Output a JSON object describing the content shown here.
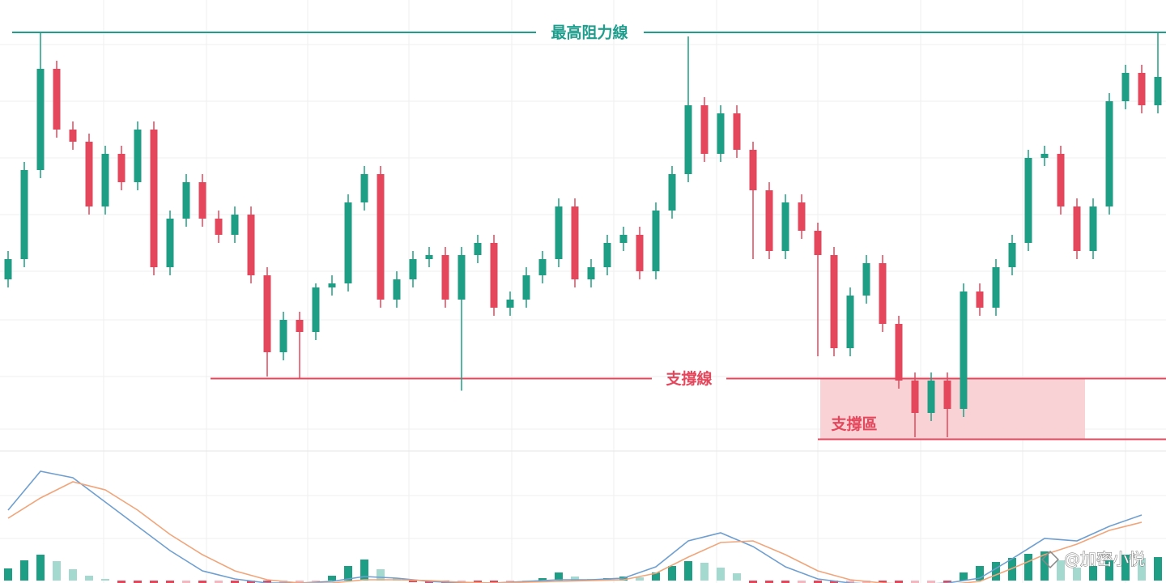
{
  "chart_data": [
    {
      "type": "candlestick",
      "open": [
        44,
        49,
        71,
        96,
        81,
        78,
        62,
        75,
        68,
        81,
        47,
        59,
        68,
        59,
        55,
        60,
        45,
        26,
        34,
        31,
        42,
        43,
        63,
        70,
        39,
        44,
        49,
        50,
        39,
        50,
        53,
        37,
        39,
        45,
        49,
        62,
        44,
        47,
        53,
        55,
        46,
        61,
        70,
        87,
        75,
        85,
        76,
        66,
        51,
        63,
        56,
        50,
        27,
        40,
        48,
        33,
        19,
        11,
        19,
        12,
        41,
        37,
        47,
        53,
        74,
        75,
        62,
        51,
        62,
        88,
        95,
        87
      ],
      "high": [
        51,
        73,
        105,
        98,
        83,
        80,
        77,
        77,
        83,
        83,
        61,
        70,
        70,
        61,
        62,
        62,
        47,
        36,
        36,
        43,
        45,
        65,
        72,
        72,
        46,
        51,
        52,
        52,
        52,
        55,
        55,
        41,
        47,
        51,
        64,
        64,
        49,
        55,
        57,
        57,
        63,
        72,
        104,
        89,
        87,
        87,
        78,
        68,
        65,
        65,
        58,
        52,
        42,
        50,
        50,
        35,
        21,
        21,
        21,
        43,
        43,
        49,
        55,
        76,
        77,
        77,
        64,
        64,
        90,
        97,
        97,
        105
      ],
      "low": [
        42,
        47,
        69,
        79,
        76,
        60,
        60,
        66,
        66,
        45,
        45,
        57,
        57,
        53,
        53,
        43,
        20,
        24,
        19.5,
        29,
        40,
        41,
        61,
        37,
        37,
        42,
        47,
        37,
        16.5,
        48,
        35,
        35,
        37,
        43,
        47,
        42,
        42,
        45,
        51,
        44,
        44,
        59,
        68,
        73,
        73,
        74,
        49,
        49,
        49,
        54,
        25,
        25,
        25,
        38,
        31,
        17,
        5,
        9,
        5,
        10,
        35,
        35,
        45,
        51,
        72,
        60,
        49,
        49,
        60,
        86,
        85,
        85
      ],
      "close": [
        49,
        71,
        96,
        81,
        78,
        62,
        75,
        68,
        81,
        47,
        59,
        68,
        59,
        55,
        60,
        45,
        26,
        34,
        31,
        42,
        43,
        63,
        70,
        39,
        44,
        49,
        50,
        39,
        50,
        53,
        37,
        39,
        45,
        49,
        62,
        44,
        47,
        53,
        55,
        46,
        61,
        70,
        87,
        75,
        85,
        76,
        66,
        51,
        63,
        56,
        50,
        27,
        40,
        48,
        33,
        19,
        11,
        19,
        12,
        41,
        37,
        47,
        53,
        74,
        75,
        62,
        51,
        62,
        88,
        95,
        87,
        94
      ],
      "colors": {
        "up": "#1f9e86",
        "down": "#e4475c"
      },
      "ylim": [
        0,
        110
      ],
      "resistance": {
        "label": "最高阻力線",
        "value": 105,
        "color": "#1f9e8e"
      },
      "support": {
        "label": "支撐線",
        "value": 19.5,
        "color": "#e4475c"
      },
      "support_zone": {
        "label": "支撐區",
        "low": 4.5,
        "high": 19.5,
        "color": "#f9d2d6"
      }
    },
    {
      "type": "macd",
      "series": [
        {
          "color": "#6f9fd0",
          "values": [
            8.7,
            13.5,
            12.7,
            9.7,
            6.7,
            3.7,
            1.2,
            0.2,
            -0.3,
            -0.3,
            -0.1,
            0.5,
            0.3,
            -0.1,
            -0.3,
            -0.3,
            -0.1,
            0.1,
            0.1,
            0.3,
            1.7,
            4.9,
            5.9,
            4.2,
            1.7,
            0.2,
            -0.3,
            -0.5,
            -0.5,
            -0.3,
            0.3,
            2.7,
            5.2,
            4.9,
            6.7,
            8.1
          ]
        },
        {
          "color": "#f0a57a",
          "values": [
            7.7,
            10.2,
            12.2,
            11.2,
            8.7,
            5.7,
            3.2,
            1.2,
            0.1,
            -0.3,
            -0.3,
            0.1,
            0.1,
            0,
            -0.2,
            -0.3,
            -0.2,
            -0.1,
            0,
            0.1,
            0.9,
            2.9,
            4.7,
            4.9,
            3.2,
            1.2,
            0.1,
            -0.3,
            -0.5,
            -0.5,
            -0.1,
            1.5,
            3.2,
            4.5,
            6.2,
            7.2
          ]
        }
      ],
      "histogram": {
        "values": [
          1.5,
          2.5,
          3.2,
          2.4,
          1.4,
          0.6,
          0.2,
          -0.3,
          -0.5,
          -0.6,
          -0.6,
          -0.5,
          -0.5,
          -0.4,
          -0.4,
          -0.5,
          -0.5,
          -0.4,
          -0.3,
          -0.1,
          0.6,
          1.8,
          2.6,
          1.4,
          0.3,
          -0.2,
          -0.3,
          -0.4,
          -0.3,
          -0.3,
          -0.4,
          -0.3,
          -0.2,
          0.3,
          1.0,
          0.5,
          0.2,
          0.3,
          0.5,
          0.4,
          1.0,
          1.8,
          2.4,
          2.2,
          1.6,
          0.9,
          -0.3,
          -0.5,
          -0.5,
          -0.4,
          -0.5,
          -0.6,
          -0.4,
          -0.3,
          -0.4,
          -0.5,
          -0.4,
          -0.3,
          -0.3,
          1.0,
          1.8,
          2.3,
          2.8,
          3.3,
          3.6,
          2.5,
          1.6,
          1.8,
          2.5,
          3.2,
          2.8,
          2.9
        ],
        "colors": {
          "up": "#1f9e86",
          "up_weak": "#a3d9ce",
          "down": "#e4475c",
          "down_weak": "#f4b6bf"
        }
      },
      "ylim": [
        -1,
        15
      ]
    }
  ],
  "watermark": "@加密小悦"
}
